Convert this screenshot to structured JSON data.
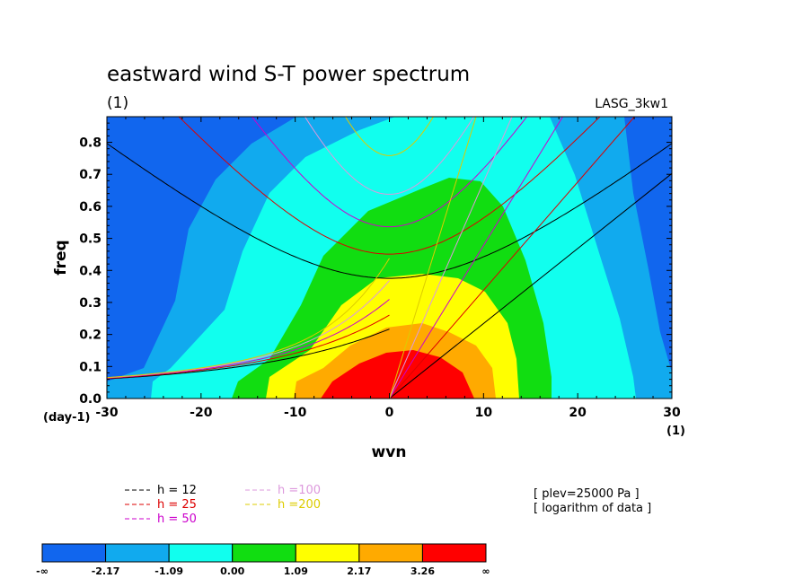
{
  "chart_data": {
    "type": "heatmap",
    "title": "eastward wind S-T power spectrum",
    "subtitle": "(1)",
    "model_label": "LASG_3kw1",
    "xlabel": "wvn",
    "ylabel": "freq",
    "x_unit": "(1)",
    "y_unit": "(day-1)",
    "xlim": [
      -30,
      30
    ],
    "ylim": [
      0,
      0.88
    ],
    "xticks": [
      "-30",
      "-20",
      "-10",
      "0",
      "10",
      "20",
      "30"
    ],
    "yticks": [
      "0.0",
      "0.1",
      "0.2",
      "0.3",
      "0.4",
      "0.5",
      "0.6",
      "0.7",
      "0.8"
    ],
    "info_lines": [
      "[ plev=25000 Pa ]",
      "[ logarithm of data ]"
    ],
    "legend": [
      {
        "label": "h = 12",
        "color": "#000000"
      },
      {
        "label": "h = 25",
        "color": "#dd0000"
      },
      {
        "label": "h = 50",
        "color": "#cc00cc"
      },
      {
        "label": "h =100",
        "color": "#dd99dd"
      },
      {
        "label": "h =200",
        "color": "#ddcc00"
      }
    ],
    "colorbar": {
      "colors": [
        "#1166ee",
        "#11aaee",
        "#11ffee",
        "#11dd11",
        "#ffff00",
        "#ffaa00",
        "#ff0000"
      ],
      "labels": [
        "-∞",
        "-2.17",
        "-1.09",
        "0.00",
        "1.09",
        "2.17",
        "3.26",
        "∞"
      ]
    }
  }
}
